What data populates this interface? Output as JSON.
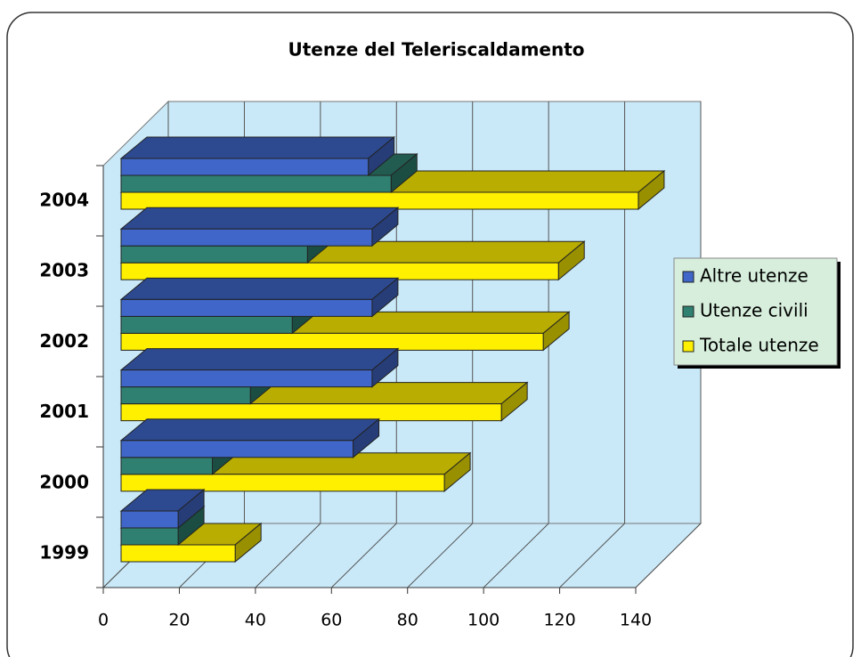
{
  "chart_data": {
    "type": "bar3d_horizontal",
    "title": "Utenze del Teleriscaldamento",
    "categories": [
      "1999",
      "2000",
      "2001",
      "2002",
      "2003",
      "2004"
    ],
    "series": [
      {
        "name": "Altre utenze",
        "color": "#3f66c8",
        "values": [
          15,
          61,
          66,
          66,
          66,
          65
        ]
      },
      {
        "name": "Utenze civili",
        "color": "#2f8070",
        "values": [
          15,
          24,
          34,
          45,
          49,
          71
        ]
      },
      {
        "name": "Totale utenze",
        "color": "#fff000",
        "values": [
          30,
          85,
          100,
          111,
          115,
          136
        ]
      }
    ],
    "xlim": [
      0,
      140
    ],
    "xticks": [
      0,
      20,
      40,
      60,
      80,
      100,
      120,
      140
    ],
    "grid": true,
    "legend": "right"
  }
}
